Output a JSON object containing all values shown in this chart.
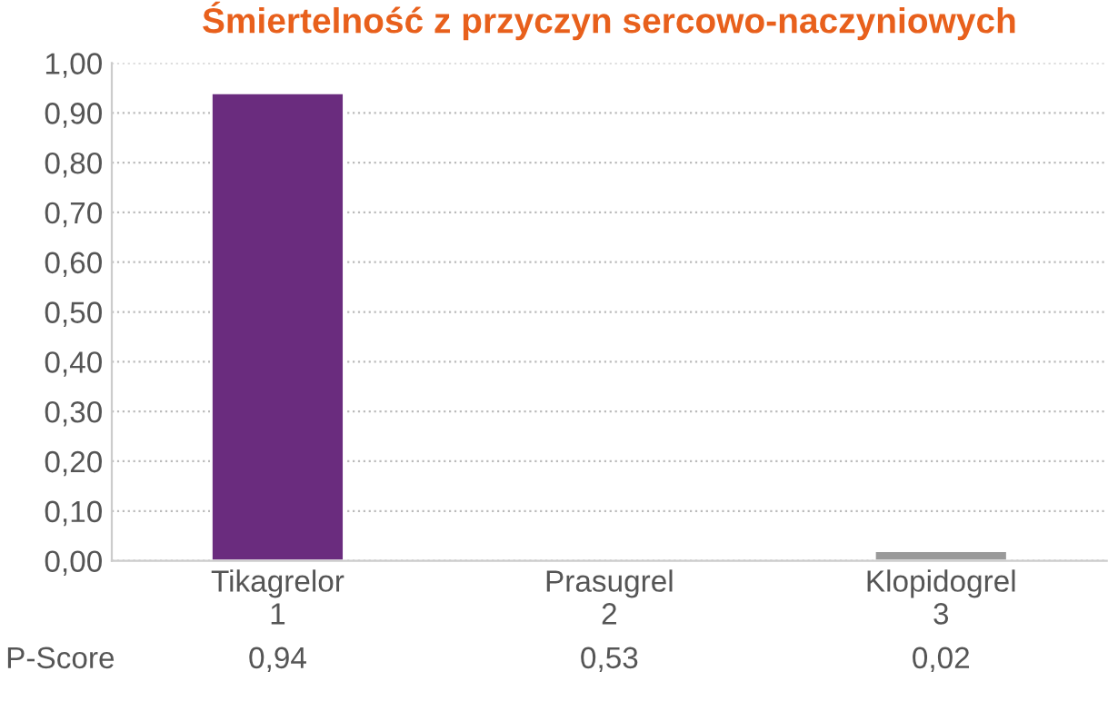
{
  "chart_data": {
    "type": "bar",
    "title": "Śmiertelność z przyczyn sercowo-naczyniowych",
    "categories": [
      "Tikagrelor\n1",
      "Prasugrel\n2",
      "Klopidogrel\n3"
    ],
    "values": [
      0.94,
      null,
      0.02
    ],
    "colors": [
      "#6a2c7e",
      "#9a9a9a",
      "#9a9a9a"
    ],
    "value_labels": [
      "0,94",
      "0,53",
      "0,02"
    ],
    "annotations": [
      "P-Score"
    ],
    "ylim": [
      0,
      1
    ],
    "yticks": [
      {
        "value": 0,
        "label": "0,00"
      },
      {
        "value": 0.1,
        "label": "0,10"
      },
      {
        "value": 0.2,
        "label": "0,20"
      },
      {
        "value": 0.3,
        "label": "0,30"
      },
      {
        "value": 0.4,
        "label": "0,40"
      },
      {
        "value": 0.5,
        "label": "0,50"
      },
      {
        "value": 0.6,
        "label": "0,60"
      },
      {
        "value": 0.7,
        "label": "0,70"
      },
      {
        "value": 0.8,
        "label": "0,80"
      },
      {
        "value": 0.9,
        "label": "0,90"
      },
      {
        "value": 1,
        "label": "1,00"
      }
    ],
    "grid": "y",
    "legend": false
  }
}
